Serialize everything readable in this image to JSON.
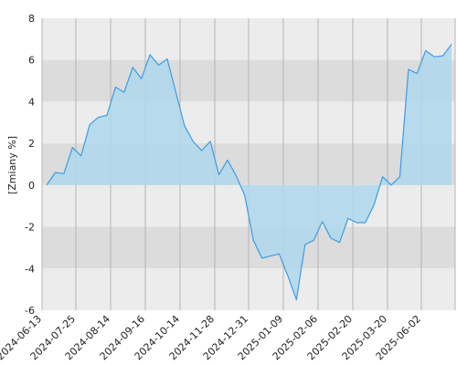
{
  "chart_data": {
    "type": "area",
    "ylabel": "[Zmiany %]",
    "ylim": [
      -6,
      8
    ],
    "y_ticks": [
      -6,
      -4,
      -2,
      0,
      2,
      4,
      6,
      8
    ],
    "x_tick_labels": [
      "2024-06-13",
      "2024-07-25",
      "2024-08-14",
      "2024-09-16",
      "2024-10-14",
      "2024-11-28",
      "2024-12-31",
      "2025-01-09",
      "2025-02-06",
      "2025-02-20",
      "2025-03-20",
      "2025-06-02"
    ],
    "grid": true,
    "colors": {
      "line": "#3d9be3",
      "fill": "#aed8ec",
      "band_dark": "#dcdcdc",
      "band_light": "#ececec",
      "grid": "#b4b4b4"
    },
    "series": [
      {
        "values": [
          0.0,
          0.6,
          0.55,
          1.8,
          1.4,
          2.9,
          3.25,
          3.35,
          4.7,
          4.45,
          5.65,
          5.1,
          6.25,
          5.75,
          6.05,
          4.45,
          2.85,
          2.1,
          1.65,
          2.1,
          0.5,
          1.2,
          0.45,
          -0.5,
          -2.65,
          -3.5,
          -3.4,
          -3.3,
          -4.35,
          -5.5,
          -2.85,
          -2.65,
          -1.75,
          -2.55,
          -2.75,
          -1.6,
          -1.8,
          -1.8,
          -0.95,
          0.4,
          0.0,
          0.4,
          5.55,
          5.35,
          6.45,
          6.15,
          6.2,
          6.75
        ]
      }
    ]
  }
}
